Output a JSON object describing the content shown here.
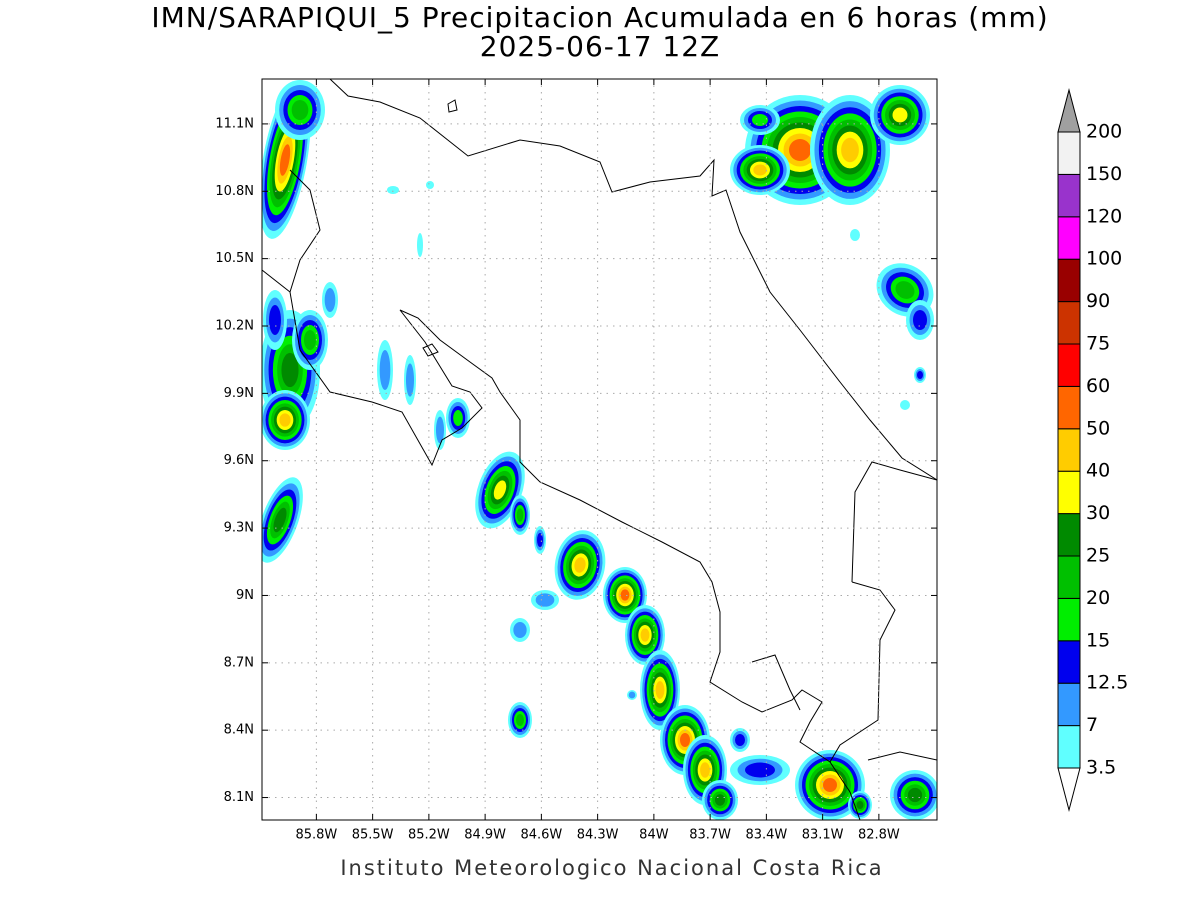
{
  "map": {
    "title": "IMN/SARAPIQUI_5 Precipitacion Acumulada en 6 horas (mm)",
    "subtitle": "2025-06-17 12Z",
    "footer": "Instituto Meteorologico Nacional Costa Rica",
    "xlim": [
      -86.09,
      -82.49
    ],
    "ylim": [
      8.0,
      11.3
    ],
    "grid": true,
    "xticks": [
      {
        "value": -85.8,
        "label": "85.8W"
      },
      {
        "value": -85.5,
        "label": "85.5W"
      },
      {
        "value": -85.2,
        "label": "85.2W"
      },
      {
        "value": -84.9,
        "label": "84.9W"
      },
      {
        "value": -84.6,
        "label": "84.6W"
      },
      {
        "value": -84.3,
        "label": "84.3W"
      },
      {
        "value": -84.0,
        "label": "84W"
      },
      {
        "value": -83.7,
        "label": "83.7W"
      },
      {
        "value": -83.4,
        "label": "83.4W"
      },
      {
        "value": -83.1,
        "label": "83.1W"
      },
      {
        "value": -82.8,
        "label": "82.8W"
      }
    ],
    "yticks": [
      {
        "value": 8.1,
        "label": "8.1N"
      },
      {
        "value": 8.4,
        "label": "8.4N"
      },
      {
        "value": 8.7,
        "label": "8.7N"
      },
      {
        "value": 9.0,
        "label": "9N"
      },
      {
        "value": 9.3,
        "label": "9.3N"
      },
      {
        "value": 9.6,
        "label": "9.6N"
      },
      {
        "value": 9.9,
        "label": "9.9N"
      },
      {
        "value": 10.2,
        "label": "10.2N"
      },
      {
        "value": 10.5,
        "label": "10.5N"
      },
      {
        "value": 10.8,
        "label": "10.8N"
      },
      {
        "value": 11.1,
        "label": "11.1N"
      }
    ]
  },
  "colorbar": {
    "levels": [
      3.5,
      7,
      12.5,
      15,
      20,
      25,
      30,
      40,
      50,
      60,
      75,
      90,
      100,
      120,
      150,
      200
    ],
    "colors": [
      "#60ffff",
      "#3399ff",
      "#0000ee",
      "#00ee00",
      "#00c000",
      "#008a00",
      "#ffff00",
      "#ffcc00",
      "#ff6600",
      "#ff0000",
      "#cc3300",
      "#990000",
      "#ff00ff",
      "#9933cc",
      "#f2f2f2"
    ],
    "under_color": "#ffffff",
    "over_color": "#a0a0a0"
  }
}
